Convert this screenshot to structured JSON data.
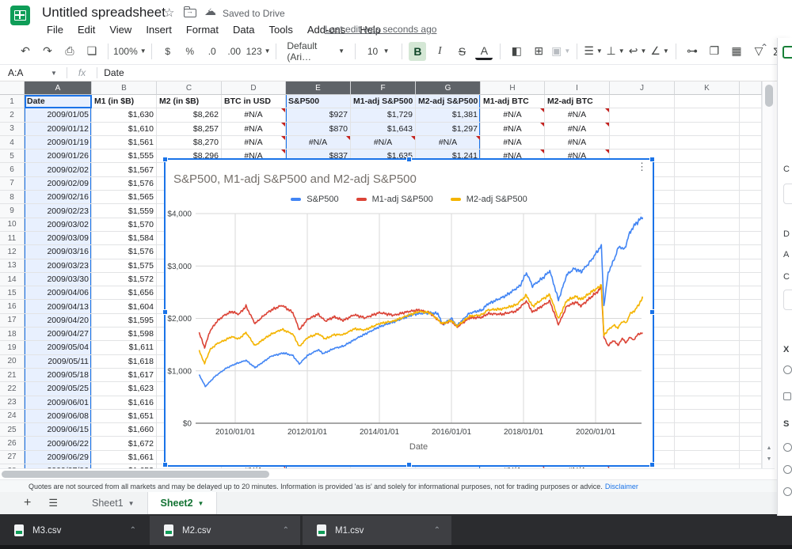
{
  "titlebar": {
    "title": "Untitled spreadsheet",
    "saved": "Saved to Drive",
    "menus": [
      "File",
      "Edit",
      "View",
      "Insert",
      "Format",
      "Data",
      "Tools",
      "Add-ons",
      "Help"
    ],
    "last_edit": "Last edit was seconds ago"
  },
  "toolbar": {
    "undo": "↶",
    "redo": "↷",
    "print": "⎙",
    "paint_format": "❏",
    "zoom": "100%",
    "currency": "$",
    "percent": "%",
    "dec_decrease": ".0",
    "dec_increase": ".00",
    "more_formats": "123",
    "font_name": "Default (Ari…",
    "font_size": "10",
    "bold": "B",
    "italic": "I",
    "strikethrough": "S",
    "text_color": "A",
    "fill_color": "◧",
    "borders": "⊞",
    "merge": "▣",
    "h_align": "☰",
    "v_align": "⊥",
    "wrap": "↩",
    "rotate": "∠",
    "link": "⊶",
    "comment": "❐",
    "chart": "▦",
    "filter": "▽",
    "functions": "Σ",
    "collapse": "⌃"
  },
  "formula_bar": {
    "name_box": "A:A",
    "fx": "fx",
    "value": "Date"
  },
  "grid": {
    "col_letters": [
      "A",
      "B",
      "C",
      "D",
      "E",
      "F",
      "G",
      "H",
      "I",
      "J",
      "K"
    ],
    "selected_cols": [
      "A",
      "E",
      "F",
      "G"
    ],
    "header_row": {
      "A": "Date",
      "B": "M1 (in $B)",
      "C": "M2 (in $B)",
      "D": "BTC in USD",
      "E": "S&P500",
      "F": "M1-adj S&P500",
      "G": "M2-adj S&P500",
      "H": "M1-adj BTC",
      "I": "M2-adj BTC"
    },
    "rows": [
      {
        "n": 2,
        "cells": {
          "A": "2009/01/05",
          "B": "$1,630",
          "C": "$8,262",
          "D": "#N/A",
          "E": "$927",
          "F": "$1,729",
          "G": "$1,381",
          "H": "#N/A",
          "I": "#N/A"
        },
        "err": [
          "D",
          "H",
          "I"
        ]
      },
      {
        "n": 3,
        "cells": {
          "A": "2009/01/12",
          "B": "$1,610",
          "C": "$8,257",
          "D": "#N/A",
          "E": "$870",
          "F": "$1,643",
          "G": "$1,297",
          "H": "#N/A",
          "I": "#N/A"
        },
        "err": [
          "D",
          "H",
          "I"
        ]
      },
      {
        "n": 4,
        "cells": {
          "A": "2009/01/19",
          "B": "$1,561",
          "C": "$8,270",
          "D": "#N/A",
          "E": "#N/A",
          "F": "#N/A",
          "G": "#N/A",
          "H": "#N/A",
          "I": "#N/A"
        },
        "err": [
          "D",
          "E",
          "F",
          "G"
        ]
      },
      {
        "n": 5,
        "cells": {
          "A": "2009/01/26",
          "B": "$1,555",
          "C": "$8,296",
          "D": "#N/A",
          "E": "$837",
          "F": "$1,635",
          "G": "$1,241",
          "H": "#N/A",
          "I": "#N/A"
        },
        "err": [
          "D",
          "H",
          "I"
        ]
      },
      {
        "n": 6,
        "cells": {
          "A": "2009/02/02",
          "B": "$1,567"
        }
      },
      {
        "n": 7,
        "cells": {
          "A": "2009/02/09",
          "B": "$1,576"
        }
      },
      {
        "n": 8,
        "cells": {
          "A": "2009/02/16",
          "B": "$1,565"
        }
      },
      {
        "n": 9,
        "cells": {
          "A": "2009/02/23",
          "B": "$1,559"
        }
      },
      {
        "n": 10,
        "cells": {
          "A": "2009/03/02",
          "B": "$1,570"
        }
      },
      {
        "n": 11,
        "cells": {
          "A": "2009/03/09",
          "B": "$1,584"
        }
      },
      {
        "n": 12,
        "cells": {
          "A": "2009/03/16",
          "B": "$1,576"
        }
      },
      {
        "n": 13,
        "cells": {
          "A": "2009/03/23",
          "B": "$1,575"
        }
      },
      {
        "n": 14,
        "cells": {
          "A": "2009/03/30",
          "B": "$1,572"
        }
      },
      {
        "n": 15,
        "cells": {
          "A": "2009/04/06",
          "B": "$1,656"
        }
      },
      {
        "n": 16,
        "cells": {
          "A": "2009/04/13",
          "B": "$1,604"
        }
      },
      {
        "n": 17,
        "cells": {
          "A": "2009/04/20",
          "B": "$1,595"
        }
      },
      {
        "n": 18,
        "cells": {
          "A": "2009/04/27",
          "B": "$1,598"
        }
      },
      {
        "n": 19,
        "cells": {
          "A": "2009/05/04",
          "B": "$1,611"
        }
      },
      {
        "n": 20,
        "cells": {
          "A": "2009/05/11",
          "B": "$1,618"
        }
      },
      {
        "n": 21,
        "cells": {
          "A": "2009/05/18",
          "B": "$1,617"
        }
      },
      {
        "n": 22,
        "cells": {
          "A": "2009/05/25",
          "B": "$1,623"
        }
      },
      {
        "n": 23,
        "cells": {
          "A": "2009/06/01",
          "B": "$1,616"
        }
      },
      {
        "n": 24,
        "cells": {
          "A": "2009/06/08",
          "B": "$1,651"
        }
      },
      {
        "n": 25,
        "cells": {
          "A": "2009/06/15",
          "B": "$1,660"
        }
      },
      {
        "n": 26,
        "cells": {
          "A": "2009/06/22",
          "B": "$1,672"
        }
      },
      {
        "n": 27,
        "cells": {
          "A": "2009/06/29",
          "B": "$1,661"
        }
      },
      {
        "n": 28,
        "cells": {
          "A": "2009/07/06",
          "B": "$1,653",
          "D": "#N/A",
          "H": "#N/A",
          "I": "#N/A"
        },
        "err": [
          "D",
          "H",
          "I"
        ]
      }
    ]
  },
  "chart_data": {
    "type": "line",
    "title": "S&P500, M1-adj S&P500 and M2-adj S&P500",
    "xlabel": "Date",
    "legend_position": "top",
    "grid": true,
    "ylim": [
      0,
      4000
    ],
    "y_ticks": [
      "$0",
      "$1,000",
      "$2,000",
      "$3,000",
      "$4,000"
    ],
    "x_ticks": [
      "2010/01/01",
      "2012/01/01",
      "2014/01/01",
      "2016/01/01",
      "2018/01/01",
      "2020/01/01"
    ],
    "x_tick_years": [
      2010,
      2012,
      2014,
      2016,
      2018,
      2020
    ],
    "x_range": [
      2009.0,
      2021.35
    ],
    "series": [
      {
        "name": "S&P500",
        "color": "#4285f4",
        "points": [
          [
            2009.0,
            927
          ],
          [
            2009.17,
            700
          ],
          [
            2009.45,
            900
          ],
          [
            2009.75,
            1050
          ],
          [
            2010.0,
            1130
          ],
          [
            2010.3,
            1200
          ],
          [
            2010.55,
            1060
          ],
          [
            2010.8,
            1180
          ],
          [
            2011.0,
            1280
          ],
          [
            2011.35,
            1340
          ],
          [
            2011.6,
            1290
          ],
          [
            2011.78,
            1130
          ],
          [
            2012.0,
            1290
          ],
          [
            2012.3,
            1400
          ],
          [
            2012.45,
            1330
          ],
          [
            2012.75,
            1430
          ],
          [
            2013.0,
            1470
          ],
          [
            2013.4,
            1630
          ],
          [
            2013.8,
            1770
          ],
          [
            2014.0,
            1840
          ],
          [
            2014.5,
            1960
          ],
          [
            2014.95,
            2080
          ],
          [
            2015.4,
            2110
          ],
          [
            2015.63,
            2090
          ],
          [
            2015.75,
            1880
          ],
          [
            2016.0,
            2000
          ],
          [
            2016.15,
            1860
          ],
          [
            2016.5,
            2100
          ],
          [
            2016.85,
            2160
          ],
          [
            2017.0,
            2270
          ],
          [
            2017.5,
            2430
          ],
          [
            2017.9,
            2620
          ],
          [
            2018.08,
            2870
          ],
          [
            2018.25,
            2620
          ],
          [
            2018.55,
            2780
          ],
          [
            2018.73,
            2910
          ],
          [
            2018.97,
            2350
          ],
          [
            2019.2,
            2830
          ],
          [
            2019.4,
            2950
          ],
          [
            2019.6,
            2890
          ],
          [
            2019.85,
            3080
          ],
          [
            2020.1,
            3330
          ],
          [
            2020.16,
            3380
          ],
          [
            2020.23,
            2240
          ],
          [
            2020.35,
            2870
          ],
          [
            2020.5,
            3100
          ],
          [
            2020.65,
            3380
          ],
          [
            2020.8,
            3310
          ],
          [
            2020.95,
            3640
          ],
          [
            2021.1,
            3800
          ],
          [
            2021.3,
            3930
          ]
        ]
      },
      {
        "name": "M1-adj S&P500",
        "color": "#db4437",
        "points": [
          [
            2009.0,
            1729
          ],
          [
            2009.15,
            1440
          ],
          [
            2009.3,
            1760
          ],
          [
            2009.5,
            1950
          ],
          [
            2009.7,
            2060
          ],
          [
            2009.9,
            2130
          ],
          [
            2010.1,
            2080
          ],
          [
            2010.3,
            2230
          ],
          [
            2010.55,
            1900
          ],
          [
            2010.8,
            2060
          ],
          [
            2011.0,
            2160
          ],
          [
            2011.3,
            2250
          ],
          [
            2011.6,
            2110
          ],
          [
            2011.78,
            1780
          ],
          [
            2012.0,
            1980
          ],
          [
            2012.3,
            2080
          ],
          [
            2012.5,
            1950
          ],
          [
            2012.75,
            2030
          ],
          [
            2013.0,
            1960
          ],
          [
            2013.3,
            2070
          ],
          [
            2013.6,
            2010
          ],
          [
            2014.0,
            2110
          ],
          [
            2014.4,
            2060
          ],
          [
            2014.8,
            2130
          ],
          [
            2015.1,
            2160
          ],
          [
            2015.4,
            2110
          ],
          [
            2015.75,
            1890
          ],
          [
            2016.0,
            1950
          ],
          [
            2016.15,
            1830
          ],
          [
            2016.5,
            2010
          ],
          [
            2016.85,
            2020
          ],
          [
            2017.0,
            2090
          ],
          [
            2017.4,
            2080
          ],
          [
            2017.8,
            2140
          ],
          [
            2018.08,
            2330
          ],
          [
            2018.25,
            2120
          ],
          [
            2018.55,
            2250
          ],
          [
            2018.73,
            2330
          ],
          [
            2018.97,
            1880
          ],
          [
            2019.2,
            2230
          ],
          [
            2019.45,
            2310
          ],
          [
            2019.6,
            2240
          ],
          [
            2019.85,
            2390
          ],
          [
            2020.1,
            2540
          ],
          [
            2020.16,
            2600
          ],
          [
            2020.23,
            1640
          ],
          [
            2020.35,
            1480
          ],
          [
            2020.5,
            1580
          ],
          [
            2020.62,
            1490
          ],
          [
            2020.75,
            1620
          ],
          [
            2020.85,
            1530
          ],
          [
            2020.95,
            1650
          ],
          [
            2021.05,
            1580
          ],
          [
            2021.15,
            1680
          ],
          [
            2021.3,
            1730
          ]
        ]
      },
      {
        "name": "M2-adj S&P500",
        "color": "#f4b400",
        "points": [
          [
            2009.0,
            1381
          ],
          [
            2009.15,
            1140
          ],
          [
            2009.3,
            1400
          ],
          [
            2009.5,
            1520
          ],
          [
            2009.7,
            1580
          ],
          [
            2009.9,
            1650
          ],
          [
            2010.1,
            1610
          ],
          [
            2010.3,
            1730
          ],
          [
            2010.55,
            1480
          ],
          [
            2010.8,
            1610
          ],
          [
            2011.0,
            1700
          ],
          [
            2011.3,
            1790
          ],
          [
            2011.6,
            1700
          ],
          [
            2011.78,
            1460
          ],
          [
            2012.0,
            1630
          ],
          [
            2012.3,
            1710
          ],
          [
            2012.5,
            1610
          ],
          [
            2012.75,
            1690
          ],
          [
            2013.0,
            1690
          ],
          [
            2013.3,
            1800
          ],
          [
            2013.6,
            1780
          ],
          [
            2014.0,
            1900
          ],
          [
            2014.4,
            1950
          ],
          [
            2014.8,
            2060
          ],
          [
            2015.1,
            2130
          ],
          [
            2015.4,
            2110
          ],
          [
            2015.75,
            1900
          ],
          [
            2016.0,
            1960
          ],
          [
            2016.15,
            1850
          ],
          [
            2016.5,
            2040
          ],
          [
            2016.85,
            2070
          ],
          [
            2017.0,
            2160
          ],
          [
            2017.4,
            2180
          ],
          [
            2017.8,
            2260
          ],
          [
            2018.08,
            2440
          ],
          [
            2018.25,
            2230
          ],
          [
            2018.55,
            2380
          ],
          [
            2018.73,
            2450
          ],
          [
            2018.97,
            1990
          ],
          [
            2019.2,
            2340
          ],
          [
            2019.45,
            2420
          ],
          [
            2019.6,
            2360
          ],
          [
            2019.85,
            2490
          ],
          [
            2020.1,
            2600
          ],
          [
            2020.16,
            2650
          ],
          [
            2020.23,
            1680
          ],
          [
            2020.35,
            1780
          ],
          [
            2020.5,
            1870
          ],
          [
            2020.62,
            1820
          ],
          [
            2020.75,
            1950
          ],
          [
            2020.85,
            1910
          ],
          [
            2020.95,
            2080
          ],
          [
            2021.1,
            2160
          ],
          [
            2021.3,
            2380
          ]
        ]
      }
    ]
  },
  "side_panel": {
    "fragments": [
      "C",
      "D",
      "A",
      "C",
      "X",
      "S"
    ]
  },
  "disclaimer": {
    "text": "Quotes are not sourced from all markets and may be delayed up to 20 minutes. Information is provided 'as is' and solely for informational purposes, not for trading purposes or advice.",
    "link": "Disclaimer"
  },
  "sheetbar": {
    "tabs": [
      {
        "label": "Sheet1",
        "active": false
      },
      {
        "label": "Sheet2",
        "active": true
      }
    ]
  },
  "downloads": [
    {
      "name": "M3.csv"
    },
    {
      "name": "M2.csv"
    },
    {
      "name": "M1.csv"
    }
  ],
  "colors": {
    "accent": "#1a73e8",
    "selection_tint": "#e8f0fe",
    "selected_header": "#5f6368",
    "sheets_green": "#0f9d58",
    "active_tab_green": "#137333",
    "error_red": "#c5221f",
    "series_blue": "#4285f4",
    "series_red": "#db4437",
    "series_yellow": "#f4b400"
  }
}
